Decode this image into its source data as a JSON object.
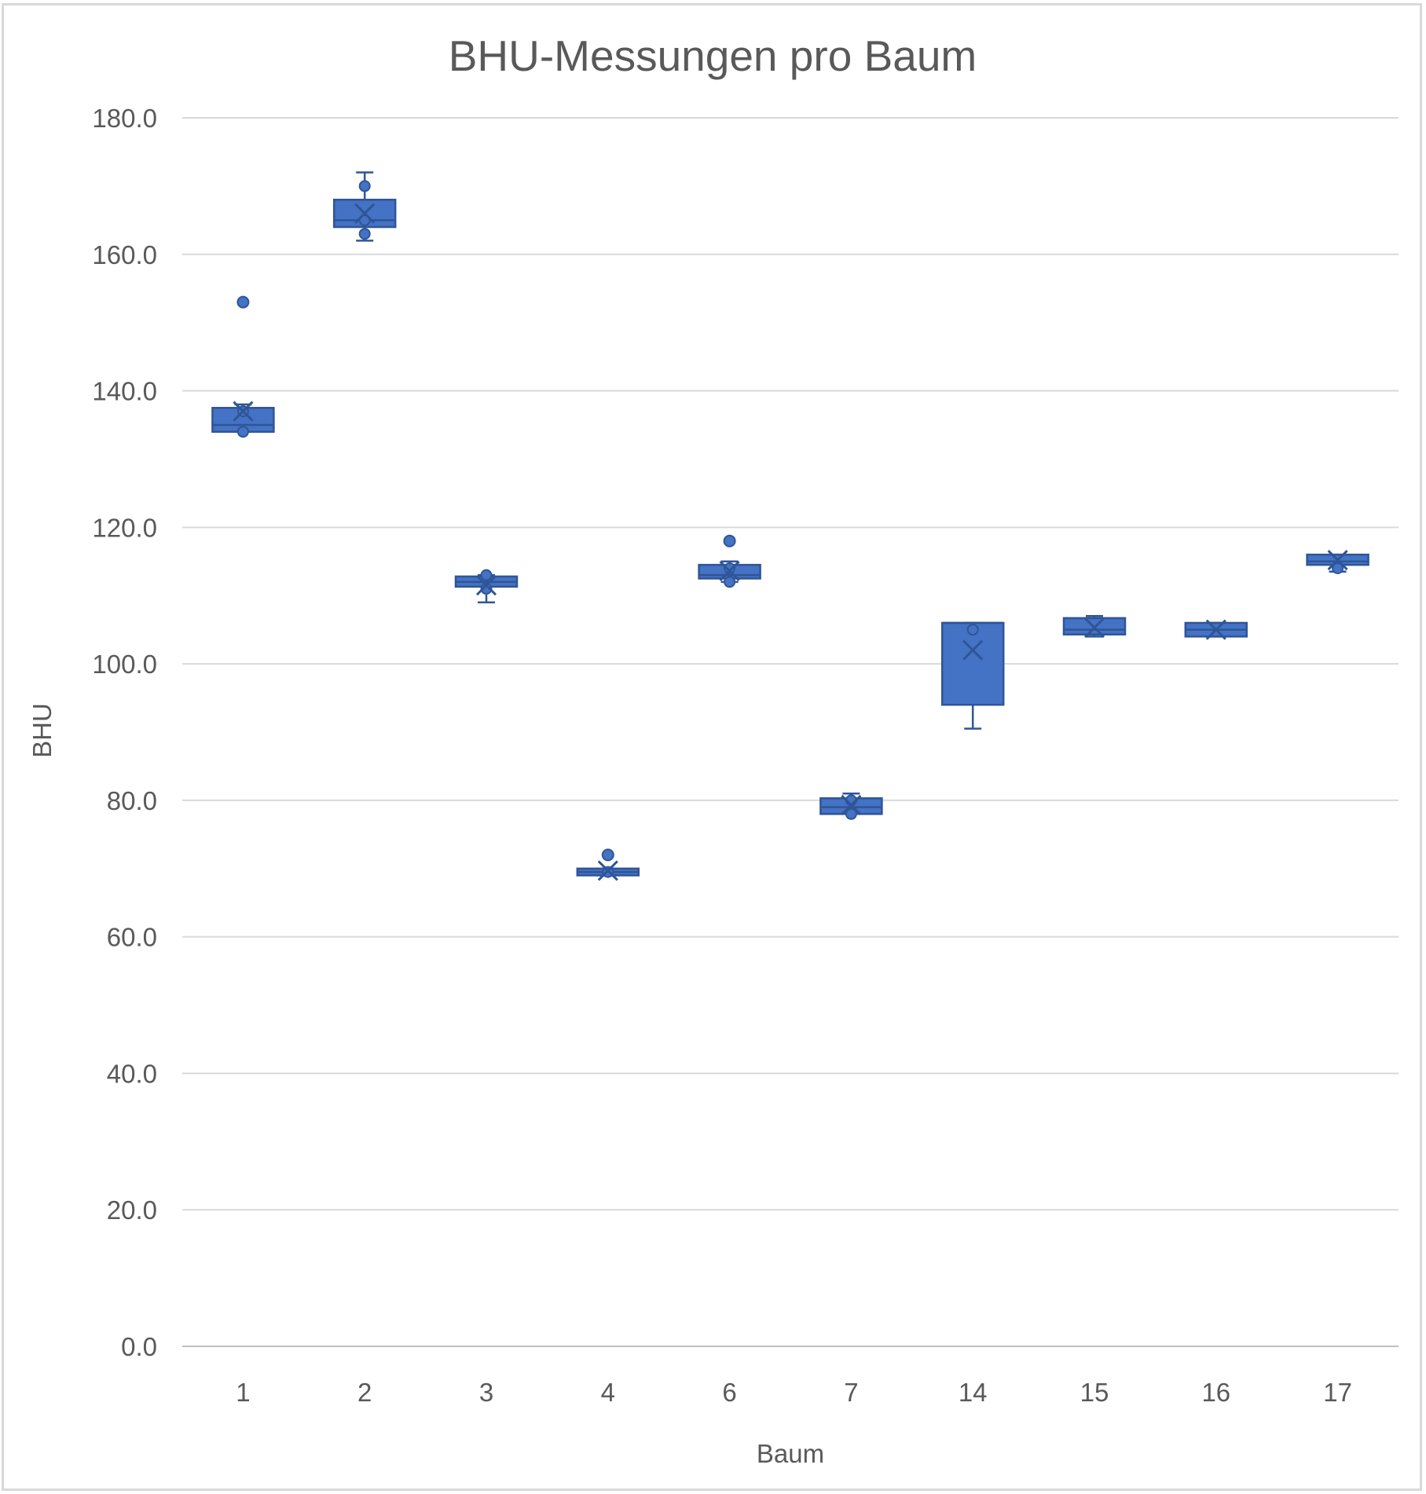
{
  "chart_data": {
    "type": "boxplot",
    "title": "BHU-Messungen pro Baum",
    "xlabel": "Baum",
    "ylabel": "BHU",
    "ylim": [
      0,
      180
    ],
    "y_ticks": [
      "0.0",
      "20.0",
      "40.0",
      "60.0",
      "80.0",
      "100.0",
      "120.0",
      "140.0",
      "160.0",
      "180.0"
    ],
    "categories": [
      "1",
      "2",
      "3",
      "4",
      "6",
      "7",
      "14",
      "15",
      "16",
      "17"
    ],
    "grid": true,
    "legend": "none",
    "color": "#4472c4",
    "edge_color": "#2f5597",
    "boxes": [
      {
        "category": "1",
        "whisker_low": 134.0,
        "q1": 134.0,
        "median": 135.0,
        "q3": 137.5,
        "whisker_high": 138.0,
        "mean": 137.0,
        "points": [
          137.0,
          134.0
        ],
        "outliers": [
          153.0
        ]
      },
      {
        "category": "2",
        "whisker_low": 162.0,
        "q1": 164.0,
        "median": 165.0,
        "q3": 168.0,
        "whisker_high": 172.0,
        "mean": 166.0,
        "points": [
          170.0,
          165.0,
          163.0
        ],
        "outliers": []
      },
      {
        "category": "3",
        "whisker_low": 109.0,
        "q1": 111.3,
        "median": 112.0,
        "q3": 112.8,
        "whisker_high": 113.0,
        "mean": 111.5,
        "points": [
          113.0,
          111.0
        ],
        "outliers": []
      },
      {
        "category": "4",
        "whisker_low": 69.0,
        "q1": 69.0,
        "median": 69.5,
        "q3": 70.0,
        "whisker_high": 70.0,
        "mean": 69.7,
        "points": [
          69.5
        ],
        "outliers": [
          72.0
        ]
      },
      {
        "category": "6",
        "whisker_low": 112.0,
        "q1": 112.5,
        "median": 113.0,
        "q3": 114.5,
        "whisker_high": 115.0,
        "mean": 113.6,
        "points": [
          114.0,
          112.0
        ],
        "outliers": [
          118.0
        ]
      },
      {
        "category": "7",
        "whisker_low": 78.0,
        "q1": 78.0,
        "median": 79.0,
        "q3": 80.3,
        "whisker_high": 81.0,
        "mean": 79.3,
        "points": [
          80.0,
          78.0
        ],
        "outliers": []
      },
      {
        "category": "14",
        "whisker_low": 90.5,
        "q1": 94.0,
        "median": 106.0,
        "q3": 106.0,
        "whisker_high": 106.0,
        "mean": 102.0,
        "points": [
          105.0
        ],
        "outliers": []
      },
      {
        "category": "15",
        "whisker_low": 104.0,
        "q1": 104.3,
        "median": 105.0,
        "q3": 106.7,
        "whisker_high": 107.0,
        "mean": 105.3,
        "points": [],
        "outliers": []
      },
      {
        "category": "16",
        "whisker_low": 104.0,
        "q1": 104.0,
        "median": 105.0,
        "q3": 106.0,
        "whisker_high": 106.0,
        "mean": 105.0,
        "points": [],
        "outliers": []
      },
      {
        "category": "17",
        "whisker_low": 113.5,
        "q1": 114.5,
        "median": 115.0,
        "q3": 116.0,
        "whisker_high": 116.0,
        "mean": 115.2,
        "points": [
          114.0
        ],
        "outliers": []
      }
    ]
  }
}
